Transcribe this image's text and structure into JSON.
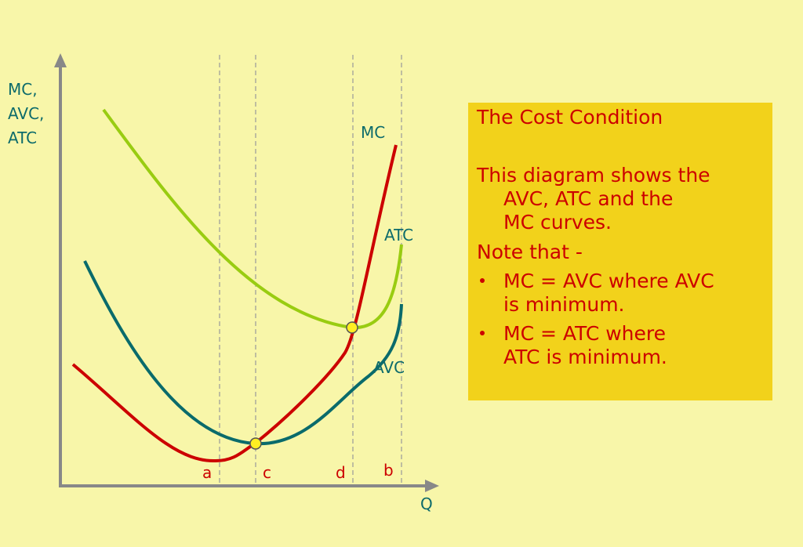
{
  "y_axis": {
    "label_lines": [
      "MC,",
      "AVC,",
      "ATC"
    ]
  },
  "x_axis": {
    "label": "Q"
  },
  "curves": {
    "mc": "MC",
    "atc": "ATC",
    "avc": "AVC"
  },
  "points": [
    "a",
    "c",
    "d",
    "b"
  ],
  "textbox": {
    "title": "The Cost Condition",
    "paragraph": [
      "This diagram shows the",
      "AVC, ATC and the",
      "MC curves."
    ],
    "note": "Note that -",
    "bullets": [
      [
        "MC = AVC where AVC",
        "is minimum."
      ],
      [
        "MC = ATC where",
        "ATC is minimum."
      ]
    ]
  }
}
